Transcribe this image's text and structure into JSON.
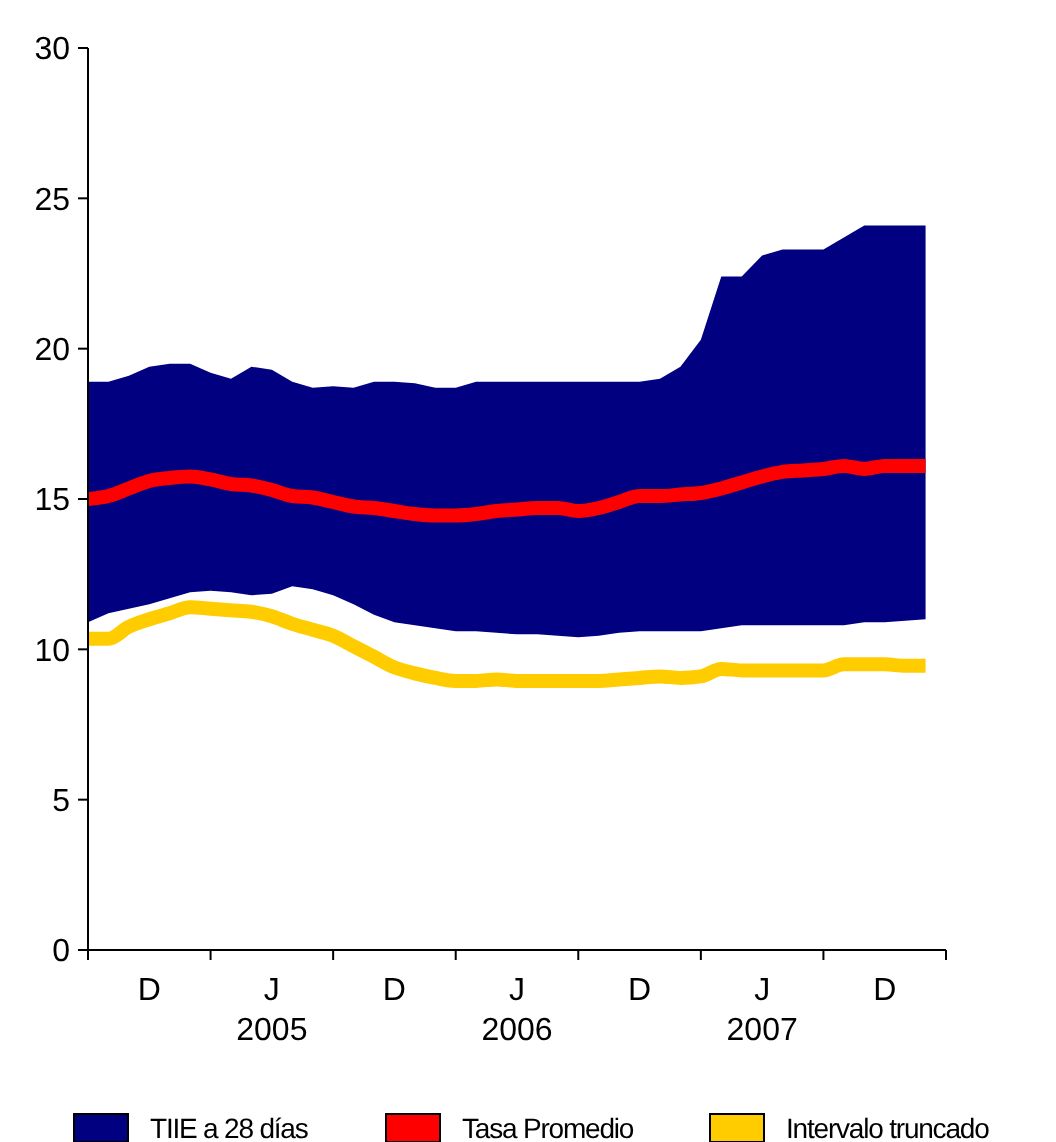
{
  "chart_data": {
    "type": "line",
    "ylim": [
      0,
      30
    ],
    "yticks": [
      0,
      5,
      10,
      15,
      20,
      25,
      30
    ],
    "categories": [
      null,
      null,
      null,
      "D",
      null,
      null,
      null,
      null,
      null,
      "J\n2005",
      null,
      null,
      null,
      null,
      null,
      "D",
      null,
      null,
      null,
      null,
      null,
      "J\n2006",
      null,
      null,
      null,
      null,
      null,
      "D",
      null,
      null,
      null,
      null,
      null,
      "J\n2007",
      null,
      null,
      null,
      null,
      null,
      "D",
      null,
      null
    ],
    "grid": false,
    "legend": "bottom",
    "series": [
      {
        "type": "area",
        "name": "TIIE a 28 días",
        "color": "#000080",
        "values": [
          null,
          null,
          null,
          null,
          null,
          null,
          null,
          null,
          null,
          null,
          null,
          null,
          null,
          null,
          null,
          null,
          null,
          null,
          null,
          null,
          null,
          null,
          null,
          null,
          null,
          null,
          null,
          null,
          null,
          null,
          null,
          null,
          null,
          null,
          null,
          null,
          null,
          null,
          null,
          null,
          null,
          null
        ],
        "upper": [
          18.9,
          18.9,
          19.1,
          19.4,
          19.5,
          19.5,
          19.2,
          19.0,
          19.4,
          19.3,
          18.9,
          18.7,
          18.75,
          18.7,
          18.9,
          18.9,
          18.85,
          18.7,
          18.7,
          18.9,
          18.9,
          18.9,
          18.9,
          18.9,
          18.9,
          18.9,
          18.9,
          18.9,
          19.0,
          19.4,
          20.3,
          22.4,
          22.4,
          23.1,
          23.3,
          23.3,
          23.3,
          23.7,
          24.1,
          24.1,
          24.1,
          24.1
        ],
        "lower": [
          10.9,
          11.2,
          11.35,
          11.5,
          11.7,
          11.9,
          11.95,
          11.9,
          11.8,
          11.85,
          12.1,
          12.0,
          11.8,
          11.5,
          11.15,
          10.9,
          10.8,
          10.7,
          10.6,
          10.6,
          10.55,
          10.5,
          10.5,
          10.45,
          10.4,
          10.45,
          10.55,
          10.6,
          10.6,
          10.6,
          10.6,
          10.7,
          10.8,
          10.8,
          10.8,
          10.8,
          10.8,
          10.8,
          10.9,
          10.9,
          10.95,
          11.0
        ]
      },
      {
        "name": "Tasa Promedio",
        "color": "#ff0000",
        "values": [
          15.0,
          15.1,
          15.35,
          15.6,
          15.7,
          15.75,
          15.65,
          15.5,
          15.45,
          15.3,
          15.1,
          15.05,
          14.9,
          14.75,
          14.7,
          14.6,
          14.5,
          14.45,
          14.45,
          14.5,
          14.6,
          14.65,
          14.7,
          14.7,
          14.6,
          14.7,
          14.9,
          15.1,
          15.1,
          15.15,
          15.2,
          15.35,
          15.55,
          15.75,
          15.9,
          15.95,
          16.0,
          16.1,
          16.0,
          16.1,
          16.1,
          16.1
        ]
      },
      {
        "name": "Intervalo truncado",
        "color": "#ffcc00",
        "values": [
          10.35,
          10.35,
          10.75,
          11.0,
          11.2,
          11.4,
          11.35,
          11.3,
          11.25,
          11.1,
          10.85,
          10.65,
          10.45,
          10.1,
          9.75,
          9.4,
          9.2,
          9.05,
          8.95,
          8.95,
          9.0,
          8.95,
          8.95,
          8.95,
          8.95,
          8.95,
          9.0,
          9.05,
          9.1,
          9.05,
          9.1,
          9.35,
          9.3,
          9.3,
          9.3,
          9.3,
          9.3,
          9.5,
          9.5,
          9.5,
          9.45,
          9.45
        ]
      }
    ]
  }
}
